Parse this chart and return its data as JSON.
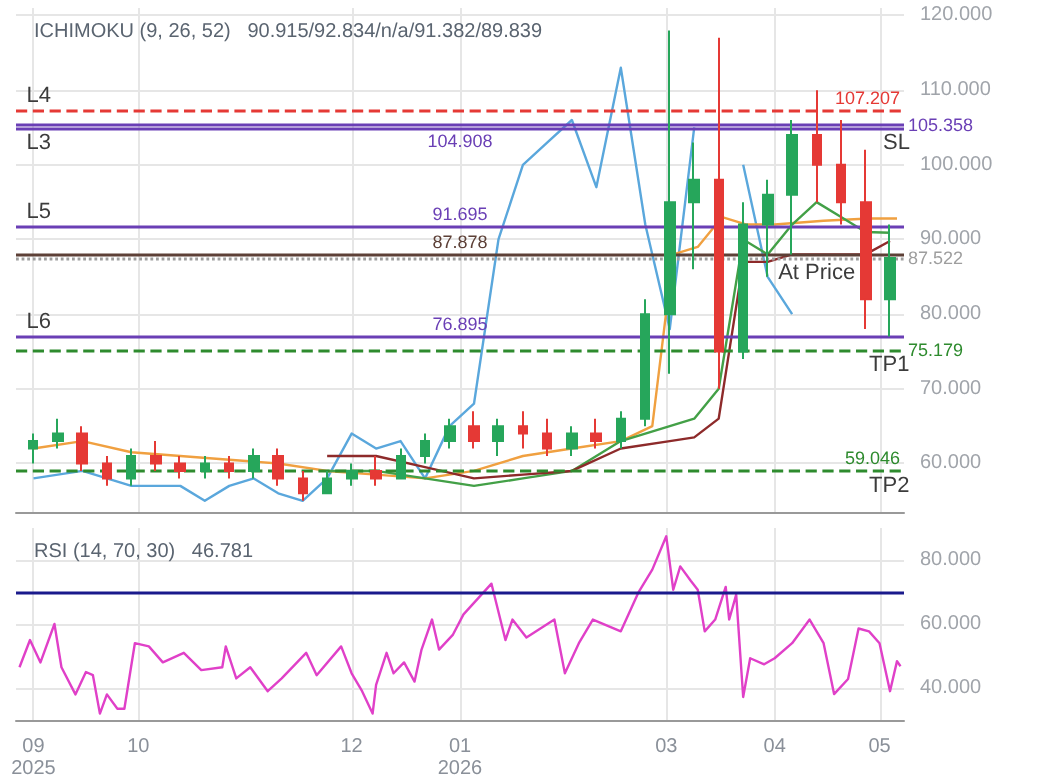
{
  "chart_data": [
    {
      "type": "candlestick",
      "title": "ICHIMOKU (9, 26, 52)   90.915/92.834/n/a/91.382/89.839",
      "x": [
        "2025-09-01",
        "2025-09-08",
        "2025-09-15",
        "2025-09-22",
        "2025-09-29",
        "2025-10-06",
        "2025-10-13",
        "2025-10-20",
        "2025-10-27",
        "2025-11-03",
        "2025-11-10",
        "2025-11-17",
        "2025-11-24",
        "2025-12-01",
        "2025-12-08",
        "2025-12-15",
        "2025-12-22",
        "2025-12-29",
        "2026-01-05",
        "2026-01-12",
        "2026-01-19",
        "2026-01-26",
        "2026-02-02",
        "2026-02-09",
        "2026-02-16",
        "2026-02-23",
        "2026-03-02",
        "2026-03-09",
        "2026-03-16",
        "2026-03-23",
        "2026-03-30",
        "2026-04-06",
        "2026-04-13",
        "2026-04-20",
        "2026-04-27",
        "2026-05-04"
      ],
      "ohlc": [
        [
          62,
          64,
          60,
          63
        ],
        [
          63,
          66,
          62,
          64
        ],
        [
          64,
          65,
          59,
          60
        ],
        [
          60,
          61,
          57,
          58
        ],
        [
          58,
          62,
          57,
          61
        ],
        [
          61,
          63,
          59,
          60
        ],
        [
          60,
          61,
          58,
          59
        ],
        [
          59,
          61,
          58,
          60
        ],
        [
          60,
          61,
          58,
          59
        ],
        [
          59,
          62,
          58,
          61
        ],
        [
          61,
          62,
          57,
          58
        ],
        [
          58,
          59,
          55,
          56
        ],
        [
          56,
          59,
          56,
          58
        ],
        [
          58,
          60,
          57,
          59
        ],
        [
          59,
          61,
          57,
          58
        ],
        [
          58,
          62,
          58,
          61
        ],
        [
          61,
          64,
          60,
          63
        ],
        [
          63,
          66,
          62,
          65
        ],
        [
          65,
          67,
          62,
          63
        ],
        [
          63,
          66,
          61,
          65
        ],
        [
          65,
          67,
          62,
          64
        ],
        [
          64,
          66,
          61,
          62
        ],
        [
          62,
          65,
          61,
          64
        ],
        [
          64,
          66,
          62,
          63
        ],
        [
          63,
          67,
          62,
          66
        ],
        [
          66,
          82,
          65,
          80
        ],
        [
          80,
          118,
          72,
          95
        ],
        [
          95,
          103,
          86,
          98
        ],
        [
          98,
          117,
          70,
          75
        ],
        [
          75,
          95,
          74,
          92
        ],
        [
          92,
          98,
          85,
          96
        ],
        [
          96,
          106,
          88,
          104
        ],
        [
          104,
          110,
          95,
          100
        ],
        [
          100,
          106,
          92,
          95
        ],
        [
          95,
          102,
          78,
          82
        ],
        [
          82,
          92,
          77,
          87.522
        ]
      ],
      "series": [
        {
          "type": "line",
          "color": "#5aa7dc",
          "x": [
            "2025-09-01",
            "2025-09-15",
            "2025-09-29",
            "2025-10-13",
            "2025-10-20",
            "2025-10-27",
            "2025-11-03",
            "2025-11-10",
            "2025-11-17",
            "2025-11-24",
            "2025-12-01",
            "2025-12-08",
            "2025-12-15",
            "2025-12-22",
            "2025-12-29",
            "2026-01-05",
            "2026-01-12",
            "2026-01-19",
            "2026-01-26",
            "2026-02-02",
            "2026-02-09",
            "2026-02-16",
            "2026-02-23",
            "2026-03-02",
            "2026-03-09",
            "2026-03-16",
            "2026-03-23",
            "2026-03-30",
            "2026-04-06"
          ],
          "values": [
            58,
            59,
            57,
            57,
            55,
            57,
            58,
            56,
            55,
            58,
            64,
            62,
            63,
            58,
            65,
            68,
            90,
            100,
            103,
            106,
            97,
            113,
            92,
            78,
            105,
            null,
            100,
            85,
            80
          ]
        },
        {
          "type": "line",
          "color": "#f0a040",
          "x": [
            "2025-09-01",
            "2025-09-15",
            "2025-09-29",
            "2025-10-13",
            "2025-10-27",
            "2025-11-10",
            "2025-11-24",
            "2025-12-08",
            "2025-12-22",
            "2026-01-05",
            "2026-01-19",
            "2026-02-02",
            "2026-02-16",
            "2026-02-25",
            "2026-03-03",
            "2026-03-10",
            "2026-03-17",
            "2026-03-24",
            "2026-04-01",
            "2026-04-15",
            "2026-04-28",
            "2026-05-06"
          ],
          "values": [
            62,
            63,
            61.5,
            61,
            60.5,
            60,
            59,
            58.5,
            58,
            59,
            61,
            62,
            63,
            65,
            88,
            89,
            93,
            92,
            92,
            92.5,
            92.8,
            92.8
          ]
        },
        {
          "type": "line",
          "color": "#43a047",
          "x": [
            "2025-11-24",
            "2025-12-08",
            "2025-12-22",
            "2026-01-05",
            "2026-01-19",
            "2026-02-02",
            "2026-02-16",
            "2026-03-02",
            "2026-03-09",
            "2026-03-16",
            "2026-03-23",
            "2026-03-30",
            "2026-04-06",
            "2026-04-13",
            "2026-04-20",
            "2026-04-27",
            "2026-05-04"
          ],
          "values": [
            59,
            59,
            58,
            57,
            58,
            59,
            63,
            65,
            66,
            70,
            90,
            88,
            92,
            95,
            93,
            91,
            90.9
          ]
        },
        {
          "type": "line",
          "color": "#8d2a2a",
          "x": [
            "2025-11-24",
            "2025-12-08",
            "2025-12-22",
            "2026-01-05",
            "2026-01-19",
            "2026-02-02",
            "2026-02-16",
            "2026-03-02",
            "2026-03-09",
            "2026-03-16",
            "2026-03-23",
            "2026-03-30",
            "2026-04-06",
            "2026-04-13",
            "2026-04-20",
            "2026-04-27",
            "2026-05-04"
          ],
          "values": [
            61,
            61,
            59.5,
            58,
            58.5,
            59,
            62,
            63,
            63.5,
            66,
            87,
            87,
            88,
            88,
            88,
            88,
            89.8
          ]
        }
      ],
      "marker": "none",
      "xlim": [
        "2025-08-27",
        "2026-05-08"
      ],
      "xticks": [
        {
          "value": "2025-09-01",
          "label": null
        },
        {
          "value": "2025-10-01",
          "label": null
        },
        {
          "value": "2025-12-01",
          "label": null
        },
        {
          "value": "2026-01-01",
          "label": null
        },
        {
          "value": "2026-03-01",
          "label": null
        },
        {
          "value": "2026-04-01",
          "label": null
        },
        {
          "value": "2026-05-01",
          "label": null
        }
      ],
      "ylim": [
        53.5,
        121
      ],
      "yticks": [
        {
          "value": 60,
          "label": "60.000"
        },
        {
          "value": 70,
          "label": "70.000"
        },
        {
          "value": 80,
          "label": "80.000"
        },
        {
          "value": 90,
          "label": "90.000"
        },
        {
          "value": 100,
          "label": "100.000"
        },
        {
          "value": 110,
          "label": "110.000"
        },
        {
          "value": 120,
          "label": "120.000"
        }
      ],
      "tick_labels": "y",
      "grid": true,
      "ref_lines": [
        {
          "axis": "y",
          "value": 107.207,
          "label": "107.207",
          "color": "#e53935",
          "line_style": "dashed"
        },
        {
          "axis": "y",
          "value": 105.358,
          "label": "105.358",
          "color": "#6a3fb5",
          "line_style": "solid"
        },
        {
          "axis": "y",
          "value": 104.908,
          "label": "104.908",
          "color": "#6a3fb5",
          "line_style": "solid"
        },
        {
          "axis": "y",
          "value": 91.695,
          "label": "91.695",
          "color": "#6a3fb5",
          "line_style": "solid"
        },
        {
          "axis": "y",
          "value": 87.878,
          "label": "87.878",
          "color": "#5d4037",
          "line_style": "solid"
        },
        {
          "axis": "y",
          "value": 87.522,
          "label": "87.522",
          "color": "#9e9e9e",
          "line_style": "dotted"
        },
        {
          "axis": "y",
          "value": 76.895,
          "label": "76.895",
          "color": "#6a3fb5",
          "line_style": "solid"
        },
        {
          "axis": "y",
          "value": 75.179,
          "label": "75.179",
          "color": "#2e8b2e",
          "line_style": "dashed"
        },
        {
          "axis": "y",
          "value": 59.046,
          "label": "59.046",
          "color": "#2e8b2e",
          "line_style": "dashed"
        }
      ],
      "annotations": [
        {
          "text": "L4",
          "x": "2025-08-30",
          "y": 107.207
        },
        {
          "text": "L3",
          "x": "2025-08-30",
          "y": 104.908
        },
        {
          "text": "L5",
          "x": "2025-08-30",
          "y": 91.695
        },
        {
          "text": "L6",
          "x": "2025-08-30",
          "y": 76.895
        },
        {
          "text": "SL",
          "x": "2026-05-02",
          "y": 104.908
        },
        {
          "text": "At Price",
          "x": "2026-04-02",
          "y": 87.522
        },
        {
          "text": "TP1",
          "x": "2026-04-28",
          "y": 75.179
        },
        {
          "text": "TP2",
          "x": "2026-04-28",
          "y": 59.046
        }
      ]
    },
    {
      "type": "line",
      "title": "RSI (14, 70, 30)   46.781",
      "series": [
        {
          "color": "#e040c8",
          "x": [
            "2025-08-28",
            "2025-08-31",
            "2025-09-03",
            "2025-09-07",
            "2025-09-09",
            "2025-09-13",
            "2025-09-16",
            "2025-09-18",
            "2025-09-20",
            "2025-09-22",
            "2025-09-25",
            "2025-09-27",
            "2025-09-30",
            "2025-10-04",
            "2025-10-08",
            "2025-10-14",
            "2025-10-19",
            "2025-10-25",
            "2025-10-26",
            "2025-10-29",
            "2025-11-02",
            "2025-11-07",
            "2025-11-11",
            "2025-11-18",
            "2025-11-21",
            "2025-11-28",
            "2025-12-01",
            "2025-12-04",
            "2025-12-07",
            "2025-12-08",
            "2025-12-11",
            "2025-12-13",
            "2025-12-16",
            "2025-12-19",
            "2025-12-21",
            "2025-12-24",
            "2025-12-26",
            "2025-12-30",
            "2026-01-02",
            "2026-01-10",
            "2026-01-14",
            "2026-01-16",
            "2026-01-20",
            "2026-01-28",
            "2026-01-31",
            "2026-02-04",
            "2026-02-08",
            "2026-02-16",
            "2026-02-21",
            "2026-02-25",
            "2026-03-01",
            "2026-03-03",
            "2026-03-05",
            "2026-03-08",
            "2026-03-10",
            "2026-03-12",
            "2026-03-15",
            "2026-03-18",
            "2026-03-19",
            "2026-03-21",
            "2026-03-23",
            "2026-03-25",
            "2026-03-29",
            "2026-04-01",
            "2026-04-06",
            "2026-04-11",
            "2026-04-15",
            "2026-04-18",
            "2026-04-22",
            "2026-04-25",
            "2026-04-28",
            "2026-05-01",
            "2026-05-04",
            "2026-05-06",
            "2026-05-07"
          ],
          "values": [
            46.5,
            55,
            48,
            60,
            46.5,
            38,
            45,
            44,
            32,
            38,
            33.5,
            33.5,
            54,
            53,
            48,
            51,
            45.6,
            46.5,
            53,
            43,
            46.5,
            39,
            43,
            51,
            44,
            53,
            44.6,
            39,
            32,
            41,
            51,
            44.6,
            48,
            42,
            52,
            61.4,
            52,
            56.7,
            63,
            72.6,
            55,
            61.4,
            55.8,
            61.4,
            44.6,
            54,
            61.4,
            57.7,
            69.8,
            77,
            87.4,
            70.7,
            78,
            73.5,
            70.7,
            57.7,
            61.4,
            71.6,
            61.4,
            69.2,
            37.2,
            49.3,
            47.4,
            49.3,
            54,
            61.4,
            54,
            38.1,
            42.8,
            58.6,
            57.7,
            54,
            39,
            48.4,
            46.8
          ]
        }
      ],
      "marker": "none",
      "xlim": [
        "2025-08-27",
        "2026-05-08"
      ],
      "xticks": [
        {
          "value": "2025-09-01",
          "label": "09\n2025"
        },
        {
          "value": "2025-10-01",
          "label": "10"
        },
        {
          "value": "2025-12-01",
          "label": "12"
        },
        {
          "value": "2026-01-01",
          "label": "01\n2026"
        },
        {
          "value": "2026-03-01",
          "label": "03"
        },
        {
          "value": "2026-04-01",
          "label": "04"
        },
        {
          "value": "2026-05-01",
          "label": "05"
        }
      ],
      "ylim": [
        30,
        90
      ],
      "yticks": [
        {
          "value": 40,
          "label": "40.000"
        },
        {
          "value": 60,
          "label": "60.000"
        },
        {
          "value": 80,
          "label": "80.000"
        }
      ],
      "grid": true,
      "ref_lines": [
        {
          "axis": "y",
          "value": 70,
          "color": "#1a1a8c",
          "line_style": "solid"
        }
      ]
    }
  ]
}
